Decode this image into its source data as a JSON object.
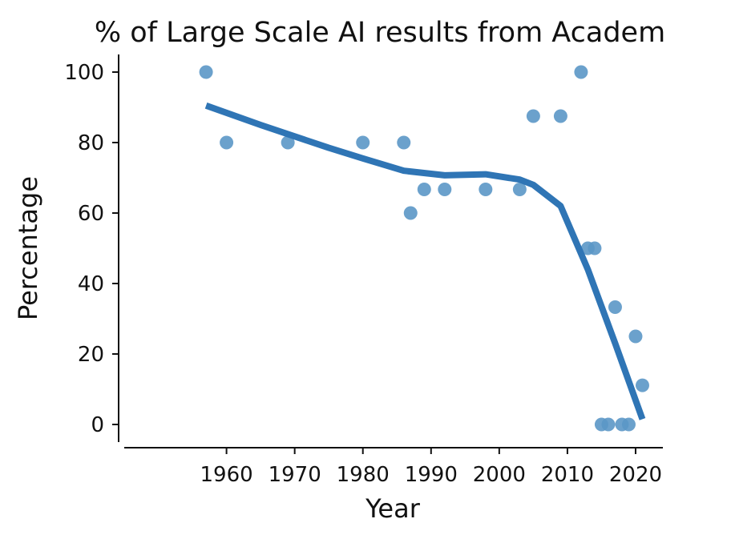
{
  "chart_data": {
    "type": "scatter",
    "title": "% of Large Scale AI results from Academ",
    "xlabel": "Year",
    "ylabel": "Percentage",
    "xlim": [
      1945,
      2024
    ],
    "ylim": [
      -5,
      105
    ],
    "xticks": [
      1960,
      1970,
      1980,
      1990,
      2000,
      2010,
      2020
    ],
    "yticks": [
      0,
      20,
      40,
      60,
      80,
      100
    ],
    "grid": false,
    "legend": "none",
    "point_color": "#5b97c6",
    "trend_color": "#2f75b5",
    "points": [
      {
        "x": 1957,
        "y": 100
      },
      {
        "x": 1960,
        "y": 80
      },
      {
        "x": 1969,
        "y": 80
      },
      {
        "x": 1980,
        "y": 80
      },
      {
        "x": 1986,
        "y": 80
      },
      {
        "x": 1987,
        "y": 60
      },
      {
        "x": 1989,
        "y": 66.7
      },
      {
        "x": 1992,
        "y": 66.7
      },
      {
        "x": 1998,
        "y": 66.7
      },
      {
        "x": 2003,
        "y": 66.7
      },
      {
        "x": 2005,
        "y": 87.5
      },
      {
        "x": 2009,
        "y": 87.5
      },
      {
        "x": 2012,
        "y": 100
      },
      {
        "x": 2013,
        "y": 50
      },
      {
        "x": 2014,
        "y": 50
      },
      {
        "x": 2015,
        "y": 0
      },
      {
        "x": 2016,
        "y": 0
      },
      {
        "x": 2017,
        "y": 33.3
      },
      {
        "x": 2018,
        "y": 0
      },
      {
        "x": 2019,
        "y": 0
      },
      {
        "x": 2020,
        "y": 25
      },
      {
        "x": 2021,
        "y": 11.1
      }
    ],
    "trend": [
      {
        "x": 1957,
        "y": 90.5
      },
      {
        "x": 1965,
        "y": 85
      },
      {
        "x": 1975,
        "y": 78.5
      },
      {
        "x": 1980,
        "y": 75.5
      },
      {
        "x": 1986,
        "y": 72
      },
      {
        "x": 1992,
        "y": 70.7
      },
      {
        "x": 1998,
        "y": 71
      },
      {
        "x": 2003,
        "y": 69.5
      },
      {
        "x": 2005,
        "y": 68
      },
      {
        "x": 2009,
        "y": 62
      },
      {
        "x": 2013,
        "y": 44
      },
      {
        "x": 2017,
        "y": 23
      },
      {
        "x": 2021,
        "y": 1.5
      }
    ]
  }
}
